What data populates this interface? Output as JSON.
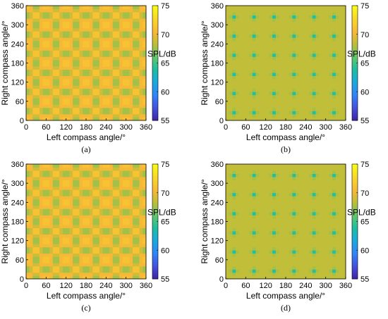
{
  "panels": [
    {
      "caption": "(a)",
      "pattern": "large-cell",
      "low": 67.0,
      "high": 71.5
    },
    {
      "caption": "(b)",
      "pattern": "small-cell",
      "low": 64.0,
      "high": 68.5
    },
    {
      "caption": "(c)",
      "pattern": "large-cell",
      "low": 67.0,
      "high": 71.5
    },
    {
      "caption": "(d)",
      "pattern": "small-cell",
      "low": 64.0,
      "high": 68.5
    }
  ],
  "colors": {
    "colormap": [
      "#3e26a8",
      "#4353e0",
      "#2e87f7",
      "#1aa9df",
      "#1fbda2",
      "#62c76a",
      "#bdbe3a",
      "#f7b937",
      "#f9d62a",
      "#f9fb15"
    ]
  },
  "chart_data": [
    {
      "type": "heatmap",
      "caption": "(a)",
      "xlabel": "Left compass angle/°",
      "ylabel": "Right compass angle/°",
      "x_ticks": [
        0,
        60,
        120,
        180,
        240,
        300,
        360
      ],
      "y_ticks": [
        0,
        60,
        120,
        180,
        240,
        300,
        360
      ],
      "xlim": [
        0,
        360
      ],
      "ylim": [
        0,
        360
      ],
      "colorbar": {
        "label": "SPL/dB",
        "range": [
          55,
          75
        ],
        "ticks": [
          55,
          60,
          65,
          70,
          75
        ]
      },
      "value_range_approx": [
        64,
        72
      ]
    },
    {
      "type": "heatmap",
      "caption": "(b)",
      "xlabel": "Left compass angle/°",
      "ylabel": "Right compass angle/°",
      "x_ticks": [
        0,
        60,
        120,
        180,
        240,
        300,
        360
      ],
      "y_ticks": [
        0,
        60,
        120,
        180,
        240,
        300,
        360
      ],
      "xlim": [
        0,
        360
      ],
      "ylim": [
        0,
        360
      ],
      "colorbar": {
        "label": "SPL/dB",
        "range": [
          55,
          75
        ],
        "ticks": [
          55,
          60,
          65,
          70,
          75
        ]
      },
      "value_range_approx": [
        62,
        69
      ]
    },
    {
      "type": "heatmap",
      "caption": "(c)",
      "xlabel": "Left compass angle/°",
      "ylabel": "Right compass angle/°",
      "x_ticks": [
        0,
        60,
        120,
        180,
        240,
        300,
        360
      ],
      "y_ticks": [
        0,
        60,
        120,
        180,
        240,
        300,
        360
      ],
      "xlim": [
        0,
        360
      ],
      "ylim": [
        0,
        360
      ],
      "colorbar": {
        "label": "SPL/dB",
        "range": [
          55,
          75
        ],
        "ticks": [
          55,
          60,
          65,
          70,
          75
        ]
      },
      "value_range_approx": [
        64,
        72
      ]
    },
    {
      "type": "heatmap",
      "caption": "(d)",
      "xlabel": "Left compass angle/°",
      "ylabel": "Right compass angle/°",
      "x_ticks": [
        0,
        60,
        120,
        180,
        240,
        300,
        360
      ],
      "y_ticks": [
        0,
        60,
        120,
        180,
        240,
        300,
        360
      ],
      "xlim": [
        0,
        360
      ],
      "ylim": [
        0,
        360
      ],
      "colorbar": {
        "label": "SPL/dB",
        "range": [
          55,
          75
        ],
        "ticks": [
          55,
          60,
          65,
          70,
          75
        ]
      },
      "value_range_approx": [
        62,
        69
      ]
    }
  ]
}
